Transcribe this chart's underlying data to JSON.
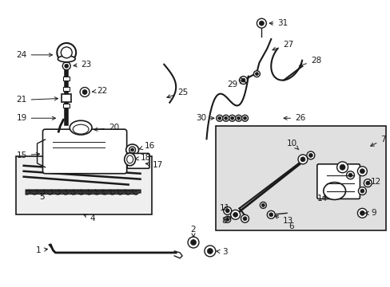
{
  "bg_color": "#ffffff",
  "line_color": "#1a1a1a",
  "box1_fill": "#efefef",
  "box2_fill": "#e0e0e0",
  "font_size": 7.5
}
